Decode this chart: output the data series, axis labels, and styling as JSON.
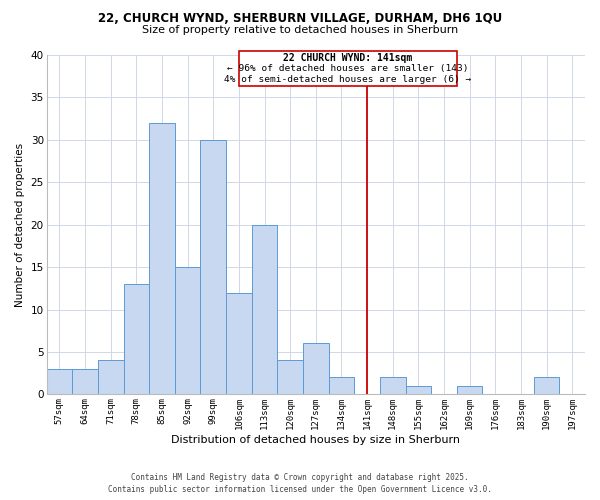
{
  "title_line1": "22, CHURCH WYND, SHERBURN VILLAGE, DURHAM, DH6 1QU",
  "title_line2": "Size of property relative to detached houses in Sherburn",
  "xlabel": "Distribution of detached houses by size in Sherburn",
  "ylabel": "Number of detached properties",
  "bin_labels": [
    "57sqm",
    "64sqm",
    "71sqm",
    "78sqm",
    "85sqm",
    "92sqm",
    "99sqm",
    "106sqm",
    "113sqm",
    "120sqm",
    "127sqm",
    "134sqm",
    "141sqm",
    "148sqm",
    "155sqm",
    "162sqm",
    "169sqm",
    "176sqm",
    "183sqm",
    "190sqm",
    "197sqm"
  ],
  "bar_heights": [
    3,
    3,
    4,
    13,
    32,
    15,
    30,
    12,
    20,
    4,
    6,
    2,
    0,
    2,
    1,
    0,
    1,
    0,
    0,
    2,
    0
  ],
  "bar_color": "#c8d8f0",
  "bar_edge_color": "#5b9bd5",
  "vline_x": 12,
  "vline_color": "#cc0000",
  "ylim": [
    0,
    40
  ],
  "yticks": [
    0,
    5,
    10,
    15,
    20,
    25,
    30,
    35,
    40
  ],
  "annotation_title": "22 CHURCH WYND: 141sqm",
  "annotation_line1": "← 96% of detached houses are smaller (143)",
  "annotation_line2": "4% of semi-detached houses are larger (6) →",
  "footnote_line1": "Contains HM Land Registry data © Crown copyright and database right 2025.",
  "footnote_line2": "Contains public sector information licensed under the Open Government Licence v3.0.",
  "background_color": "#ffffff",
  "grid_color": "#d0d8e8"
}
